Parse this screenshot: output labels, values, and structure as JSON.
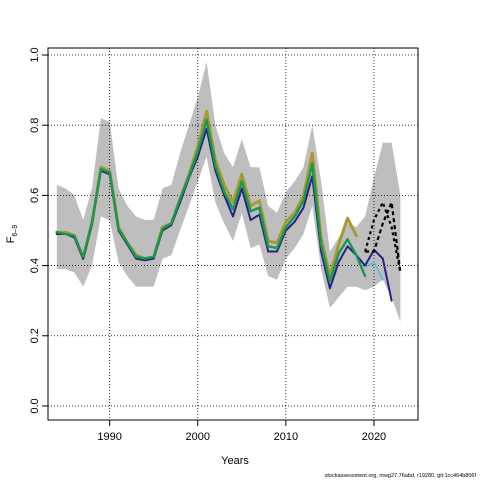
{
  "chart_data": {
    "type": "line",
    "xlabel": "Years",
    "ylabel_main": "F",
    "ylabel_sub": "6–9",
    "caption": "stockassessment.org, mwg27.76abd, r19280, git:1cc464b806f",
    "xlim": [
      1983,
      2025
    ],
    "ylim": [
      -0.04,
      1.02
    ],
    "x_ticks": [
      1990,
      2000,
      2010,
      2020
    ],
    "y_ticks": [
      0.0,
      0.2,
      0.4,
      0.6,
      0.8,
      1.0
    ],
    "x_tick_labels": [
      "1990",
      "2000",
      "2010",
      "2020"
    ],
    "y_tick_labels": [
      "0.0",
      "0.2",
      "0.4",
      "0.6",
      "0.8",
      "1.0"
    ],
    "grid": true,
    "colors": {
      "band": "#bebebe",
      "olive": "#a59a33",
      "navy": "#252383",
      "green": "#1a9850",
      "cyan": "#4fc3e0",
      "black": "#000000"
    },
    "band": {
      "x": [
        1984,
        1985,
        1986,
        1987,
        1988,
        1989,
        1990,
        1991,
        1992,
        1993,
        1994,
        1995,
        1996,
        1997,
        1998,
        1999,
        2000,
        2001,
        2002,
        2003,
        2004,
        2005,
        2006,
        2007,
        2008,
        2009,
        2010,
        2011,
        2012,
        2013,
        2014,
        2015,
        2016,
        2017,
        2018,
        2019,
        2020,
        2021,
        2022,
        2023
      ],
      "upper": [
        0.63,
        0.62,
        0.6,
        0.53,
        0.62,
        0.82,
        0.81,
        0.62,
        0.57,
        0.54,
        0.53,
        0.53,
        0.62,
        0.63,
        0.72,
        0.8,
        0.88,
        0.98,
        0.8,
        0.72,
        0.68,
        0.76,
        0.68,
        0.68,
        0.57,
        0.55,
        0.61,
        0.64,
        0.68,
        0.8,
        0.64,
        0.44,
        0.48,
        0.52,
        0.51,
        0.54,
        0.65,
        0.75,
        0.75,
        0.6
      ],
      "lower": [
        0.39,
        0.39,
        0.38,
        0.34,
        0.4,
        0.54,
        0.53,
        0.41,
        0.37,
        0.34,
        0.34,
        0.34,
        0.42,
        0.43,
        0.5,
        0.57,
        0.64,
        0.71,
        0.58,
        0.52,
        0.47,
        0.55,
        0.45,
        0.46,
        0.37,
        0.36,
        0.42,
        0.45,
        0.49,
        0.57,
        0.39,
        0.28,
        0.31,
        0.34,
        0.34,
        0.33,
        0.34,
        0.36,
        0.31,
        0.24
      ]
    },
    "series": [
      {
        "x": [
          1984,
          1985,
          1986,
          1987,
          1988,
          1989,
          1990,
          1991,
          1992,
          1993,
          1994,
          1995,
          1996,
          1997,
          1998,
          1999,
          2000,
          2001,
          2002,
          2003,
          2004,
          2005,
          2006,
          2007,
          2008,
          2009,
          2010,
          2011,
          2012,
          2013,
          2014,
          2015,
          2016,
          2017,
          2018
        ],
        "values": [
          0.495,
          0.495,
          0.485,
          0.42,
          0.52,
          0.68,
          0.67,
          0.51,
          0.465,
          0.43,
          0.42,
          0.425,
          0.51,
          0.52,
          0.59,
          0.66,
          0.74,
          0.84,
          0.7,
          0.63,
          0.58,
          0.66,
          0.57,
          0.585,
          0.47,
          0.465,
          0.525,
          0.55,
          0.6,
          0.72,
          0.48,
          0.37,
          0.46,
          0.535,
          0.485
        ],
        "color_key": "olive",
        "width": 3
      },
      {
        "x": [
          1984,
          1985,
          1986,
          1987,
          1988,
          1989,
          1990,
          1991,
          1992,
          1993,
          1994,
          1995,
          1996,
          1997,
          1998,
          1999,
          2000,
          2001,
          2002,
          2003,
          2004,
          2005,
          2006,
          2007,
          2008,
          2009,
          2010,
          2011,
          2012,
          2013,
          2014,
          2015,
          2016,
          2017,
          2018,
          2019,
          2020,
          2021,
          2022
        ],
        "values": [
          0.49,
          0.49,
          0.48,
          0.42,
          0.52,
          0.67,
          0.66,
          0.5,
          0.46,
          0.42,
          0.415,
          0.42,
          0.5,
          0.515,
          0.58,
          0.65,
          0.71,
          0.79,
          0.67,
          0.6,
          0.54,
          0.62,
          0.53,
          0.545,
          0.44,
          0.44,
          0.5,
          0.525,
          0.565,
          0.655,
          0.44,
          0.335,
          0.41,
          0.455,
          0.43,
          0.4,
          0.445,
          0.42,
          0.3
        ],
        "color_key": "navy",
        "width": 2
      },
      {
        "x": [
          1984,
          1985,
          1986,
          1987,
          1988,
          1989,
          1990,
          1991,
          1992,
          1993,
          1994,
          1995,
          1996,
          1997,
          1998,
          1999,
          2000,
          2001,
          2002,
          2003,
          2004,
          2005,
          2006,
          2007,
          2008,
          2009,
          2010,
          2011,
          2012,
          2013,
          2014,
          2015,
          2016,
          2017,
          2018,
          2019
        ],
        "values": [
          0.495,
          0.49,
          0.485,
          0.425,
          0.525,
          0.675,
          0.665,
          0.505,
          0.465,
          0.425,
          0.42,
          0.425,
          0.505,
          0.52,
          0.59,
          0.655,
          0.725,
          0.815,
          0.685,
          0.61,
          0.56,
          0.64,
          0.555,
          0.565,
          0.455,
          0.45,
          0.51,
          0.54,
          0.585,
          0.69,
          0.46,
          0.355,
          0.435,
          0.475,
          0.43,
          0.37
        ],
        "color_key": "green",
        "width": 2.4
      },
      {
        "x": [
          2019,
          2020,
          2021
        ],
        "values": [
          0.395,
          0.41,
          0.36
        ],
        "color_key": "cyan",
        "width": 1.6
      },
      {
        "x": [
          2019,
          2020,
          2021,
          2022,
          2023
        ],
        "values": [
          0.44,
          0.44,
          0.52,
          0.58,
          0.38
        ],
        "color_key": "black",
        "width": 2.2,
        "dash": "4 3"
      },
      {
        "x": [
          2019,
          2020,
          2021,
          2022,
          2023
        ],
        "values": [
          0.44,
          0.53,
          0.58,
          0.51,
          0.38
        ],
        "color_key": "black",
        "width": 2.2,
        "dash": "3 3"
      }
    ]
  }
}
